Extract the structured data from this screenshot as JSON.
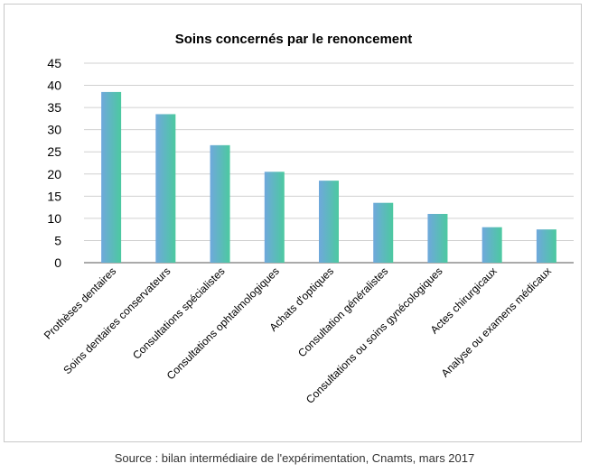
{
  "chart_data": {
    "type": "bar",
    "title": "Soins concernés par le renoncement",
    "categories": [
      "Prothèses dentaires",
      "Soins dentaires conservateurs",
      "Consultations spécialistes",
      "Consultations ophtalmologiques",
      "Achats d'optiques",
      "Consultation généralistes",
      "Consultations ou soins gynécologiques",
      "Actes chirurgicaux",
      "Analyse ou examens médicaux"
    ],
    "values": [
      38.5,
      33.5,
      26.5,
      20.5,
      18.5,
      13.5,
      11,
      8,
      7.5
    ],
    "yticks": [
      "0",
      "5",
      "10",
      "15",
      "20",
      "25",
      "30",
      "35",
      "40",
      "45"
    ],
    "ylim": [
      0,
      45
    ],
    "grid": true,
    "colors": {
      "bar_blue": "#6fa8dc",
      "bar_teal": "#4cc9a0",
      "grid": "#d0d0d0",
      "axis": "#555555"
    }
  },
  "source": "Source : bilan intermédiaire de l'expérimentation, Cnamts, mars 2017"
}
